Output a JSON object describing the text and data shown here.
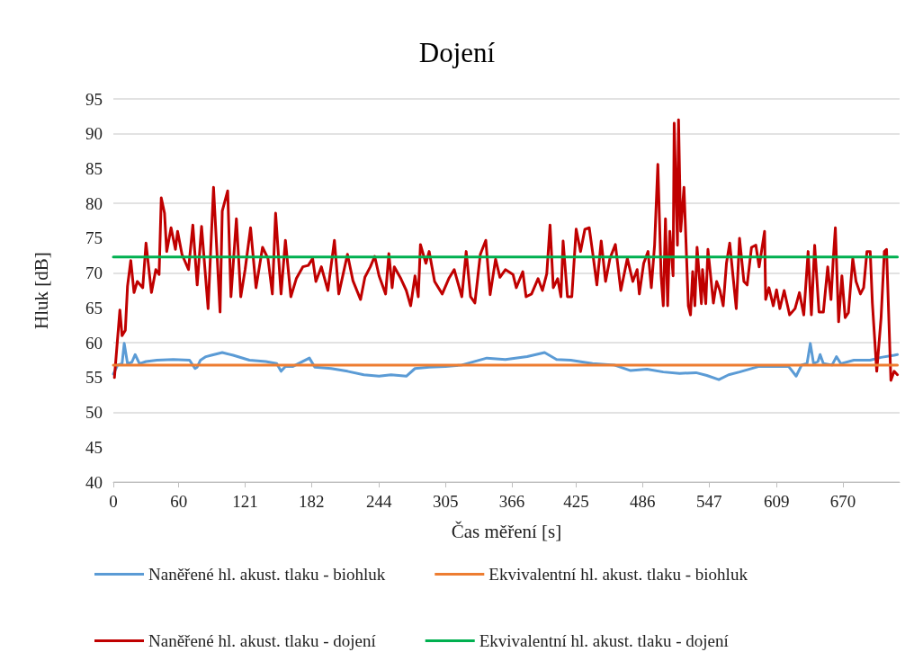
{
  "chart_data": {
    "type": "line",
    "title": "Dojení",
    "xlabel": "Čas měření [s]",
    "ylabel": "Hluk [dB]",
    "xlim": [
      0,
      722
    ],
    "xticks": [
      0,
      60,
      121,
      182,
      244,
      305,
      366,
      425,
      486,
      547,
      609,
      670
    ],
    "ylim": [
      40,
      95
    ],
    "yticks": [
      40,
      45,
      50,
      55,
      60,
      65,
      70,
      75,
      80,
      85,
      90,
      95
    ],
    "grid": "y",
    "legend": "bottom",
    "marker": "none",
    "line_style": "solid",
    "series": [
      {
        "name": "Naněřené hl. akust. tlaku - biohluk",
        "color": "#5b9bd5",
        "x": [
          0,
          4,
          8,
          10,
          13,
          17,
          20,
          24,
          30,
          40,
          55,
          70,
          75,
          77,
          80,
          85,
          90,
          100,
          110,
          125,
          140,
          150,
          154,
          158,
          165,
          180,
          185,
          200,
          215,
          230,
          244,
          255,
          269,
          277,
          290,
          305,
          320,
          343,
          360,
          380,
          396,
          407,
          420,
          440,
          460,
          475,
          490,
          505,
          520,
          535,
          545,
          556,
          565,
          575,
          593,
          610,
          620,
          627,
          632,
          637,
          640,
          643,
          647,
          649,
          652,
          660,
          664,
          668,
          680,
          695,
          705,
          717,
          720
        ],
        "values": [
          55.5,
          56.8,
          57,
          59.9,
          57,
          57.2,
          58.3,
          57,
          57.3,
          57.5,
          57.6,
          57.5,
          56.3,
          56.5,
          57.5,
          58,
          58.2,
          58.6,
          58.2,
          57.5,
          57.3,
          57,
          55.9,
          56.6,
          56.6,
          57.8,
          56.5,
          56.3,
          55.9,
          55.4,
          55.2,
          55.4,
          55.2,
          56.3,
          56.5,
          56.6,
          56.8,
          57.8,
          57.6,
          58,
          58.6,
          57.6,
          57.5,
          57,
          56.8,
          56,
          56.2,
          55.8,
          55.6,
          55.7,
          55.3,
          54.7,
          55.4,
          55.8,
          56.6,
          56.6,
          56.6,
          55.2,
          56.8,
          57,
          59.9,
          57,
          57.3,
          58.3,
          57,
          56.8,
          58,
          57,
          57.5,
          57.5,
          57.9,
          58.2,
          58.3
        ]
      },
      {
        "name": "Ekvivalentní hl. akust. tlaku - biohluk",
        "color": "#ed7d31",
        "x": [
          0,
          720
        ],
        "values": [
          56.8,
          56.8
        ]
      },
      {
        "name": "Naněřené hl. akust. tlaku - dojení",
        "color": "#c00000",
        "x": [
          1,
          6,
          8,
          11,
          13,
          16,
          19,
          22,
          27,
          30,
          35,
          39,
          42,
          44,
          47,
          49,
          53,
          57,
          59,
          63,
          69,
          73,
          77,
          81,
          87,
          92,
          98,
          100,
          105,
          108,
          113,
          117,
          121,
          126,
          131,
          137,
          142,
          146,
          149,
          154,
          158,
          163,
          168,
          174,
          179,
          183,
          186,
          191,
          197,
          203,
          207,
          215,
          220,
          227,
          231,
          236,
          240,
          244,
          250,
          253,
          256,
          258,
          264,
          269,
          273,
          277,
          280,
          282,
          287,
          290,
          295,
          302,
          308,
          313,
          320,
          324,
          328,
          332,
          337,
          342,
          346,
          351,
          355,
          360,
          367,
          370,
          376,
          379,
          384,
          390,
          394,
          398,
          401,
          404,
          408,
          411,
          413,
          417,
          421,
          425,
          429,
          433,
          437,
          440,
          444,
          448,
          452,
          456,
          461,
          466,
          472,
          477,
          481,
          483,
          487,
          491,
          494,
          497,
          500,
          503,
          505,
          507,
          509,
          511,
          514,
          515,
          518,
          519,
          521,
          524,
          528,
          530,
          532,
          534,
          536,
          540,
          541,
          544,
          546,
          551,
          554,
          557,
          560,
          563,
          566,
          569,
          572,
          575,
          579,
          582,
          586,
          590,
          593,
          598,
          599,
          602,
          606,
          609,
          612,
          616,
          621,
          626,
          630,
          634,
          638,
          641,
          644,
          648,
          652,
          656,
          659,
          661,
          663,
          666,
          669,
          672,
          675,
          679,
          682,
          686,
          689,
          692,
          695,
          697,
          701,
          705,
          708,
          710,
          714,
          717,
          720
        ],
        "values": [
          55.0,
          64.7,
          61.0,
          61.8,
          68.1,
          71.8,
          67.2,
          68.8,
          67.9,
          74.3,
          67.2,
          70.5,
          69.8,
          80.8,
          78.6,
          73.1,
          76.5,
          73.4,
          76.0,
          72.7,
          70.5,
          76.9,
          68.3,
          76.7,
          64.9,
          82.3,
          64.4,
          78.9,
          81.8,
          66.6,
          77.8,
          66.6,
          70.5,
          76.5,
          67.9,
          73.7,
          72.1,
          67.0,
          78.6,
          67.0,
          74.7,
          66.6,
          69.2,
          70.9,
          71.1,
          72.1,
          68.8,
          70.9,
          67.5,
          74.7,
          67.0,
          72.7,
          68.9,
          66.2,
          69.4,
          70.9,
          72.4,
          69.6,
          67.0,
          72.8,
          67.9,
          70.9,
          69.2,
          67.5,
          65.3,
          69.6,
          66.6,
          74.1,
          71.4,
          73.1,
          68.8,
          67.0,
          69.2,
          70.5,
          66.6,
          73.1,
          66.6,
          65.7,
          72.7,
          74.7,
          66.9,
          72.0,
          69.4,
          70.5,
          69.8,
          67.9,
          70.2,
          66.6,
          67.0,
          69.2,
          67.5,
          69.9,
          76.9,
          67.9,
          69.2,
          66.6,
          74.6,
          66.6,
          66.6,
          76.3,
          73.1,
          76.3,
          76.5,
          73.1,
          68.3,
          74.6,
          68.8,
          72.1,
          74.1,
          67.5,
          72.1,
          68.8,
          70.5,
          67.0,
          71.4,
          73.1,
          67.9,
          74.0,
          85.6,
          69.6,
          65.3,
          77.8,
          65.3,
          76.0,
          69.6,
          91.5,
          74.0,
          92.0,
          76.0,
          82.3,
          65.3,
          64.0,
          70.2,
          65.3,
          73.7,
          65.6,
          70.5,
          65.6,
          73.4,
          65.7,
          68.8,
          67.5,
          65.3,
          71.4,
          74.3,
          69.6,
          64.9,
          75.0,
          68.8,
          68.3,
          73.7,
          74.0,
          70.9,
          76.0,
          66.2,
          67.9,
          65.3,
          67.6,
          64.9,
          67.5,
          64.0,
          64.9,
          67.2,
          64.0,
          73.1,
          64.0,
          74.0,
          64.4,
          64.4,
          70.9,
          66.2,
          71.8,
          76.5,
          63.0,
          69.6,
          63.6,
          64.3,
          72.1,
          68.8,
          67.0,
          67.9,
          73.1,
          73.1,
          65.7,
          55.9,
          63.6,
          73.1,
          73.4,
          54.6,
          55.9,
          55.4
        ]
      },
      {
        "name": "Ekvivalentní hl. akust. tlaku - dojení",
        "color": "#00b050",
        "x": [
          0,
          720
        ],
        "values": [
          72.3,
          72.3
        ]
      }
    ]
  }
}
